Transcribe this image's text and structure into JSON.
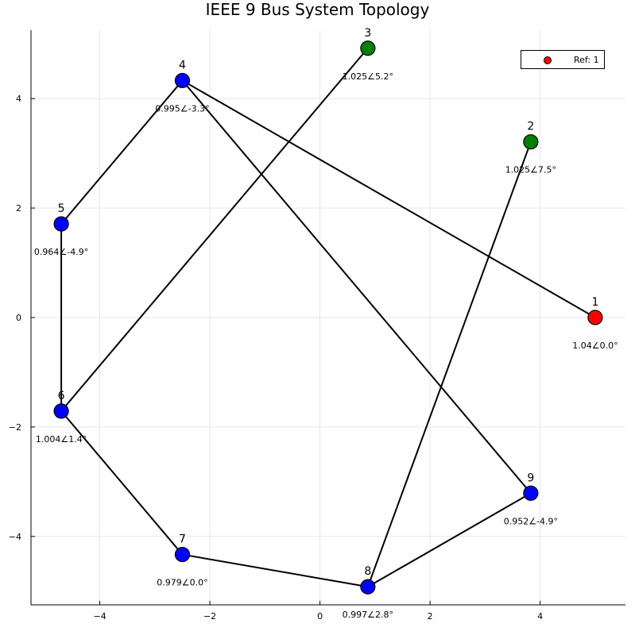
{
  "title": "IEEE 9 Bus System Topology",
  "legend": {
    "label": "Ref: 1",
    "color": "#ff0000"
  },
  "chart_data": {
    "type": "network",
    "title": "IEEE 9 Bus System Topology",
    "xlim": [
      -5.25,
      5.55
    ],
    "ylim": [
      -5.25,
      5.25
    ],
    "xticks": [
      -4,
      -2,
      0,
      2,
      4
    ],
    "yticks": [
      -4,
      -2,
      0,
      2,
      4
    ],
    "grid": true,
    "legend_position": "top-right",
    "nodes": [
      {
        "id": "1",
        "x": 5.0,
        "y": 0.0,
        "label": "1.04∠0.0°",
        "color": "#ff0000"
      },
      {
        "id": "2",
        "x": 3.83,
        "y": 3.21,
        "label": "1.025∠7.5°",
        "color": "#008000"
      },
      {
        "id": "3",
        "x": 0.87,
        "y": 4.92,
        "label": "1.025∠5.2°",
        "color": "#008000"
      },
      {
        "id": "4",
        "x": -2.5,
        "y": 4.33,
        "label": "0.995∠-3.3°",
        "color": "#0000ff"
      },
      {
        "id": "5",
        "x": -4.7,
        "y": 1.71,
        "label": "0.964∠-4.9°",
        "color": "#0000ff"
      },
      {
        "id": "6",
        "x": -4.7,
        "y": -1.71,
        "label": "1.004∠1.4°",
        "color": "#0000ff"
      },
      {
        "id": "7",
        "x": -2.5,
        "y": -4.33,
        "label": "0.979∠0.0°",
        "color": "#0000ff"
      },
      {
        "id": "8",
        "x": 0.87,
        "y": -4.92,
        "label": "0.997∠2.8°",
        "color": "#0000ff"
      },
      {
        "id": "9",
        "x": 3.83,
        "y": -3.21,
        "label": "0.952∠-4.9°",
        "color": "#0000ff"
      }
    ],
    "edges": [
      [
        "1",
        "4"
      ],
      [
        "4",
        "5"
      ],
      [
        "4",
        "9"
      ],
      [
        "5",
        "6"
      ],
      [
        "6",
        "3"
      ],
      [
        "6",
        "7"
      ],
      [
        "7",
        "8"
      ],
      [
        "8",
        "2"
      ],
      [
        "8",
        "9"
      ]
    ]
  }
}
